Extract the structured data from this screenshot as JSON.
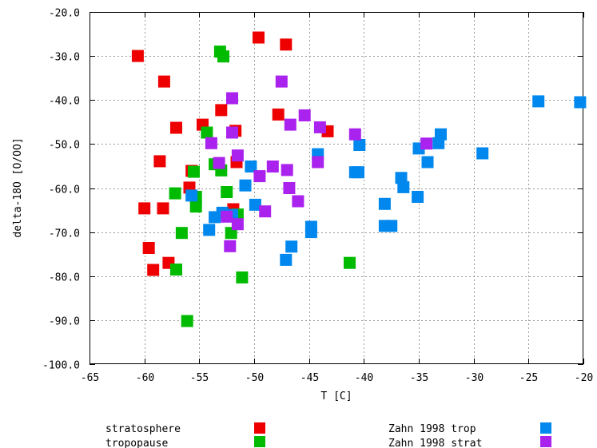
{
  "chart_data": {
    "type": "scatter",
    "xlabel": "T [C]",
    "ylabel": "delta-18O [O/OO]",
    "xlim": [
      -65,
      -20
    ],
    "ylim": [
      -100,
      -20
    ],
    "x_ticks": [
      {
        "value": -65,
        "label": "-65"
      },
      {
        "value": -60,
        "label": "-60"
      },
      {
        "value": -55,
        "label": "-55"
      },
      {
        "value": -50,
        "label": "-50"
      },
      {
        "value": -45,
        "label": "-45"
      },
      {
        "value": -40,
        "label": "-40"
      },
      {
        "value": -35,
        "label": "-35"
      },
      {
        "value": -30,
        "label": "-30"
      },
      {
        "value": -25,
        "label": "-25"
      },
      {
        "value": -20,
        "label": "-20"
      }
    ],
    "y_ticks": [
      {
        "value": -20,
        "label": "-20.0"
      },
      {
        "value": -30,
        "label": "-30.0"
      },
      {
        "value": -40,
        "label": "-40.0"
      },
      {
        "value": -50,
        "label": "-50.0"
      },
      {
        "value": -60,
        "label": "-60.0"
      },
      {
        "value": -70,
        "label": "-70.0"
      },
      {
        "value": -80,
        "label": "-80.0"
      },
      {
        "value": -90,
        "label": "-90.0"
      },
      {
        "value": -100,
        "label": "-100.0"
      }
    ],
    "grid": true,
    "legend_position": "bottom",
    "series": [
      {
        "name": "stratosphere",
        "color": "#ee0000",
        "points": [
          [
            -60.6,
            -30.0
          ],
          [
            -58.2,
            -35.8
          ],
          [
            -49.6,
            -25.8
          ],
          [
            -47.1,
            -27.4
          ],
          [
            -57.1,
            -46.3
          ],
          [
            -54.7,
            -45.6
          ],
          [
            -53.0,
            -42.3
          ],
          [
            -51.7,
            -47.0
          ],
          [
            -47.8,
            -43.3
          ],
          [
            -43.3,
            -47.1
          ],
          [
            -58.6,
            -53.9
          ],
          [
            -55.7,
            -56.1
          ],
          [
            -55.9,
            -59.9
          ],
          [
            -51.6,
            -54.1
          ],
          [
            -60.0,
            -64.6
          ],
          [
            -58.3,
            -64.6
          ],
          [
            -51.9,
            -64.8
          ],
          [
            -59.6,
            -73.6
          ],
          [
            -59.2,
            -78.6
          ],
          [
            -57.8,
            -77.0
          ]
        ]
      },
      {
        "name": "tropopause",
        "color": "#00bb00",
        "points": [
          [
            -53.1,
            -29.0
          ],
          [
            -52.8,
            -30.1
          ],
          [
            -54.3,
            -47.4
          ],
          [
            -55.5,
            -56.3
          ],
          [
            -53.6,
            -54.6
          ],
          [
            -53.0,
            -56.0
          ],
          [
            -52.5,
            -60.9
          ],
          [
            -55.3,
            -62.0
          ],
          [
            -57.2,
            -61.2
          ],
          [
            -55.3,
            -64.2
          ],
          [
            -51.5,
            -66.0
          ],
          [
            -52.1,
            -70.2
          ],
          [
            -56.6,
            -70.2
          ],
          [
            -57.1,
            -78.5
          ],
          [
            -51.1,
            -80.3
          ],
          [
            -41.3,
            -77.0
          ],
          [
            -56.1,
            -90.2
          ]
        ]
      },
      {
        "name": "Zahn 1998 trop",
        "color": "#0088ee",
        "points": [
          [
            -24.1,
            -40.3
          ],
          [
            -20.3,
            -40.5
          ],
          [
            -33.0,
            -47.8
          ],
          [
            -33.2,
            -49.8
          ],
          [
            -34.2,
            -54.1
          ],
          [
            -35.0,
            -51.0
          ],
          [
            -29.2,
            -52.1
          ],
          [
            -40.4,
            -50.2
          ],
          [
            -44.2,
            -52.3
          ],
          [
            -40.8,
            -56.4
          ],
          [
            -40.5,
            -56.4
          ],
          [
            -36.6,
            -57.7
          ],
          [
            -36.4,
            -59.8
          ],
          [
            -35.1,
            -62.0
          ],
          [
            -38.1,
            -63.6
          ],
          [
            -38.1,
            -68.6
          ],
          [
            -37.5,
            -68.6
          ],
          [
            -44.8,
            -68.8
          ],
          [
            -44.8,
            -70.0
          ],
          [
            -46.6,
            -73.3
          ],
          [
            -47.1,
            -76.3
          ],
          [
            -50.3,
            -55.1
          ],
          [
            -50.8,
            -59.4
          ],
          [
            -49.9,
            -63.8
          ],
          [
            -52.9,
            -65.6
          ],
          [
            -53.6,
            -66.6
          ],
          [
            -55.7,
            -61.7
          ],
          [
            -54.1,
            -69.5
          ],
          [
            -52.0,
            -66.1
          ]
        ]
      },
      {
        "name": "Zahn 1998 strat",
        "color": "#aa22ee",
        "points": [
          [
            -47.5,
            -35.8
          ],
          [
            -52.0,
            -39.6
          ],
          [
            -46.7,
            -45.6
          ],
          [
            -45.4,
            -43.5
          ],
          [
            -44.0,
            -46.2
          ],
          [
            -40.8,
            -47.8
          ],
          [
            -34.3,
            -49.9
          ],
          [
            -52.0,
            -47.4
          ],
          [
            -53.9,
            -49.8
          ],
          [
            -51.5,
            -52.6
          ],
          [
            -53.2,
            -54.3
          ],
          [
            -48.3,
            -55.1
          ],
          [
            -49.5,
            -57.3
          ],
          [
            -47.0,
            -55.9
          ],
          [
            -44.2,
            -54.1
          ],
          [
            -46.8,
            -60.0
          ],
          [
            -46.0,
            -63.0
          ],
          [
            -49.0,
            -65.3
          ],
          [
            -52.5,
            -66.5
          ],
          [
            -51.5,
            -68.2
          ],
          [
            -52.2,
            -73.2
          ]
        ]
      }
    ]
  }
}
